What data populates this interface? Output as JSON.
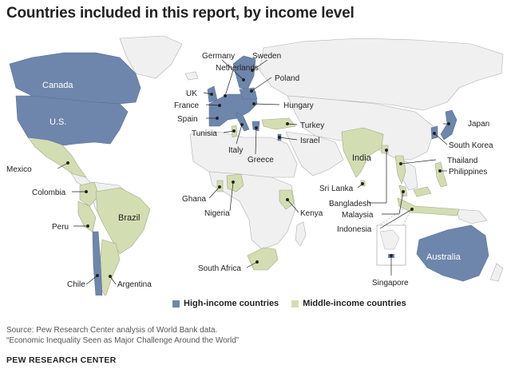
{
  "title": "Countries included in this report, by income level",
  "colors": {
    "high": "#6e86ac",
    "middle": "#d3ddb2",
    "other": "#f0f0f0",
    "border": "#b0b0b0"
  },
  "legend": {
    "high": "High-income countries",
    "middle": "Middle-income countries"
  },
  "labels": {
    "canada": "Canada",
    "us": "U.S.",
    "mexico": "Mexico",
    "colombia": "Colombia",
    "brazil": "Brazil",
    "peru": "Peru",
    "chile": "Chile",
    "argentina": "Argentina",
    "germany": "Germany",
    "sweden": "Sweden",
    "netherlands": "Netherlands",
    "poland": "Poland",
    "uk": "UK",
    "france": "France",
    "hungary": "Hungary",
    "spain": "Spain",
    "tunisia": "Tunisia",
    "italy": "Italy",
    "greece": "Greece",
    "turkey": "Turkey",
    "israel": "Israel",
    "ghana": "Ghana",
    "nigeria": "Nigeria",
    "kenya": "Kenya",
    "south_africa": "South Africa",
    "india": "India",
    "sri_lanka": "Sri Lanka",
    "bangladesh": "Bangladesh",
    "malaysia": "Malaysia",
    "indonesia": "Indonesia",
    "singapore": "Singapore",
    "japan": "Japan",
    "south_korea": "South Korea",
    "thailand": "Thailand",
    "philippines": "Philippines",
    "australia": "Australia"
  },
  "footer": {
    "source": "Source: Pew Research Center analysis of World Bank data.",
    "report": "“Economic Inequality Seen as Major Challenge Around the World”"
  },
  "org": "PEW RESEARCH CENTER"
}
